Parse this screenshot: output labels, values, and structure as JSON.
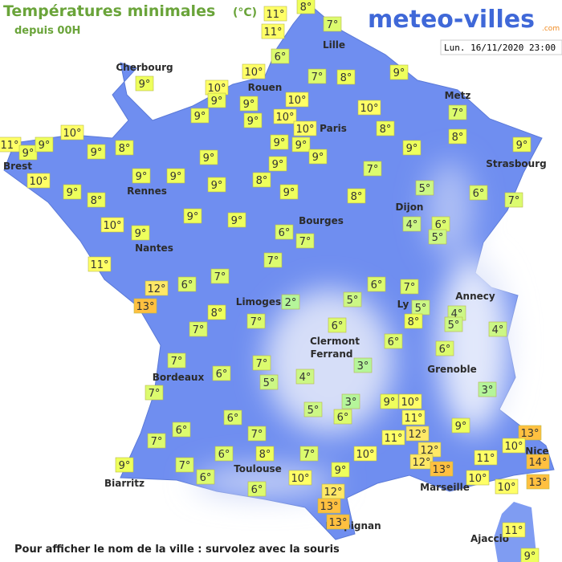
{
  "header": {
    "title": "Températures minimales",
    "unit": "(°C)",
    "subtitle": "depuis 00H",
    "brand": "meteo-villes",
    "brand_suffix": ".com",
    "date": "Lun. 16/11/2020 23:00"
  },
  "footer": "Pour afficher le nom de la ville : survolez avec la souris",
  "cities": [
    "Cherbourg",
    "Rouen",
    "Lille",
    "Paris",
    "Metz",
    "Brest",
    "Rennes",
    "Strasbourg",
    "Dijon",
    "Bourges",
    "Nantes",
    "Limoges",
    "Annecy",
    "Ly",
    "Clermont",
    "Ferrand",
    "Grenoble",
    "Bordeaux",
    "Toulouse",
    "Marseille",
    "Nice",
    "Biarritz",
    "Perpignan",
    "Ajaccio"
  ],
  "labels": [
    {
      "text": "11°",
      "color": "#ffff66"
    },
    {
      "text": "8°",
      "color": "#eeff5c"
    },
    {
      "text": "7°",
      "color": "#dcfb6e"
    },
    {
      "text": "11°",
      "color": "#ffff66"
    },
    {
      "text": "6°",
      "color": "#dcfb6e"
    },
    {
      "text": "10°",
      "color": "#ffff66"
    },
    {
      "text": "7°",
      "color": "#dcfb6e"
    },
    {
      "text": "8°",
      "color": "#eeff5c"
    },
    {
      "text": "9°",
      "color": "#eeff5c"
    },
    {
      "text": "9°",
      "color": "#eeff5c"
    },
    {
      "text": "10°",
      "color": "#ffff66"
    },
    {
      "text": "9°",
      "color": "#eeff5c"
    },
    {
      "text": "9°",
      "color": "#eeff5c"
    },
    {
      "text": "10°",
      "color": "#ffff66"
    },
    {
      "text": "9°",
      "color": "#eeff5c"
    },
    {
      "text": "10°",
      "color": "#ffff66"
    },
    {
      "text": "10°",
      "color": "#ffff66"
    },
    {
      "text": "9°",
      "color": "#eeff5c"
    },
    {
      "text": "10°",
      "color": "#ffff66"
    },
    {
      "text": "7°",
      "color": "#dcfb6e"
    },
    {
      "text": "8°",
      "color": "#eeff5c"
    },
    {
      "text": "8°",
      "color": "#eeff5c"
    },
    {
      "text": "10°",
      "color": "#ffff66"
    },
    {
      "text": "11°",
      "color": "#ffff66"
    },
    {
      "text": "9°",
      "color": "#eeff5c"
    },
    {
      "text": "9°",
      "color": "#eeff5c"
    },
    {
      "text": "9°",
      "color": "#eeff5c"
    },
    {
      "text": "8°",
      "color": "#eeff5c"
    },
    {
      "text": "10°",
      "color": "#ffff66"
    },
    {
      "text": "9°",
      "color": "#eeff5c"
    },
    {
      "text": "8°",
      "color": "#eeff5c"
    },
    {
      "text": "9°",
      "color": "#eeff5c"
    },
    {
      "text": "9°",
      "color": "#eeff5c"
    },
    {
      "text": "9°",
      "color": "#eeff5c"
    },
    {
      "text": "9°",
      "color": "#eeff5c"
    },
    {
      "text": "8°",
      "color": "#eeff5c"
    },
    {
      "text": "9°",
      "color": "#eeff5c"
    },
    {
      "text": "9°",
      "color": "#eeff5c"
    },
    {
      "text": "9°",
      "color": "#eeff5c"
    },
    {
      "text": "9°",
      "color": "#eeff5c"
    },
    {
      "text": "9°",
      "color": "#eeff5c"
    },
    {
      "text": "7°",
      "color": "#dcfb6e"
    },
    {
      "text": "8°",
      "color": "#eeff5c"
    },
    {
      "text": "9°",
      "color": "#eeff5c"
    },
    {
      "text": "9°",
      "color": "#eeff5c"
    },
    {
      "text": "5°",
      "color": "#ccf785"
    },
    {
      "text": "6°",
      "color": "#dcfb6e"
    },
    {
      "text": "7°",
      "color": "#dcfb6e"
    },
    {
      "text": "10°",
      "color": "#ffff66"
    },
    {
      "text": "9°",
      "color": "#eeff5c"
    },
    {
      "text": "9°",
      "color": "#eeff5c"
    },
    {
      "text": "9°",
      "color": "#eeff5c"
    },
    {
      "text": "6°",
      "color": "#dcfb6e"
    },
    {
      "text": "7°",
      "color": "#dcfb6e"
    },
    {
      "text": "4°",
      "color": "#ccf785"
    },
    {
      "text": "6°",
      "color": "#dcfb6e"
    },
    {
      "text": "5°",
      "color": "#ccf785"
    },
    {
      "text": "11°",
      "color": "#ffff66"
    },
    {
      "text": "7°",
      "color": "#dcfb6e"
    },
    {
      "text": "12°",
      "color": "#ffe866"
    },
    {
      "text": "13°",
      "color": "#ffc040"
    },
    {
      "text": "6°",
      "color": "#dcfb6e"
    },
    {
      "text": "7°",
      "color": "#dcfb6e"
    },
    {
      "text": "6°",
      "color": "#dcfb6e"
    },
    {
      "text": "7°",
      "color": "#dcfb6e"
    },
    {
      "text": "8°",
      "color": "#eeff5c"
    },
    {
      "text": "2°",
      "color": "#b5f59a"
    },
    {
      "text": "5°",
      "color": "#ccf785"
    },
    {
      "text": "5°",
      "color": "#ccf785"
    },
    {
      "text": "4°",
      "color": "#ccf785"
    },
    {
      "text": "5°",
      "color": "#ccf785"
    },
    {
      "text": "8°",
      "color": "#eeff5c"
    },
    {
      "text": "7°",
      "color": "#dcfb6e"
    },
    {
      "text": "7°",
      "color": "#dcfb6e"
    },
    {
      "text": "6°",
      "color": "#dcfb6e"
    },
    {
      "text": "4°",
      "color": "#ccf785"
    },
    {
      "text": "6°",
      "color": "#dcfb6e"
    },
    {
      "text": "6°",
      "color": "#dcfb6e"
    },
    {
      "text": "7°",
      "color": "#dcfb6e"
    },
    {
      "text": "7°",
      "color": "#dcfb6e"
    },
    {
      "text": "6°",
      "color": "#dcfb6e"
    },
    {
      "text": "5°",
      "color": "#ccf785"
    },
    {
      "text": "4°",
      "color": "#ccf785"
    },
    {
      "text": "3°",
      "color": "#b5f59a"
    },
    {
      "text": "7°",
      "color": "#dcfb6e"
    },
    {
      "text": "3°",
      "color": "#b5f59a"
    },
    {
      "text": "9°",
      "color": "#eeff5c"
    },
    {
      "text": "10°",
      "color": "#ffff66"
    },
    {
      "text": "3°",
      "color": "#b5f59a"
    },
    {
      "text": "5°",
      "color": "#ccf785"
    },
    {
      "text": "6°",
      "color": "#dcfb6e"
    },
    {
      "text": "6°",
      "color": "#dcfb6e"
    },
    {
      "text": "11°",
      "color": "#ffff66"
    },
    {
      "text": "9°",
      "color": "#eeff5c"
    },
    {
      "text": "6°",
      "color": "#dcfb6e"
    },
    {
      "text": "7°",
      "color": "#dcfb6e"
    },
    {
      "text": "11°",
      "color": "#ffff66"
    },
    {
      "text": "12°",
      "color": "#ffe866"
    },
    {
      "text": "13°",
      "color": "#ffc040"
    },
    {
      "text": "10°",
      "color": "#ffff66"
    },
    {
      "text": "7°",
      "color": "#dcfb6e"
    },
    {
      "text": "6°",
      "color": "#dcfb6e"
    },
    {
      "text": "8°",
      "color": "#eeff5c"
    },
    {
      "text": "7°",
      "color": "#dcfb6e"
    },
    {
      "text": "10°",
      "color": "#ffff66"
    },
    {
      "text": "12°",
      "color": "#ffe866"
    },
    {
      "text": "12°",
      "color": "#ffe866"
    },
    {
      "text": "13°",
      "color": "#ffc040"
    },
    {
      "text": "11°",
      "color": "#ffff66"
    },
    {
      "text": "14°",
      "color": "#ffc040"
    },
    {
      "text": "9°",
      "color": "#eeff5c"
    },
    {
      "text": "7°",
      "color": "#dcfb6e"
    },
    {
      "text": "6°",
      "color": "#dcfb6e"
    },
    {
      "text": "9°",
      "color": "#eeff5c"
    },
    {
      "text": "10°",
      "color": "#ffff66"
    },
    {
      "text": "10°",
      "color": "#ffff66"
    },
    {
      "text": "13°",
      "color": "#ffc040"
    },
    {
      "text": "10°",
      "color": "#ffff66"
    },
    {
      "text": "6°",
      "color": "#dcfb6e"
    },
    {
      "text": "12°",
      "color": "#ffe866"
    },
    {
      "text": "13°",
      "color": "#ffc040"
    },
    {
      "text": "13°",
      "color": "#ffc040"
    },
    {
      "text": "11°",
      "color": "#ffff66"
    },
    {
      "text": "9°",
      "color": "#eeff5c"
    }
  ]
}
